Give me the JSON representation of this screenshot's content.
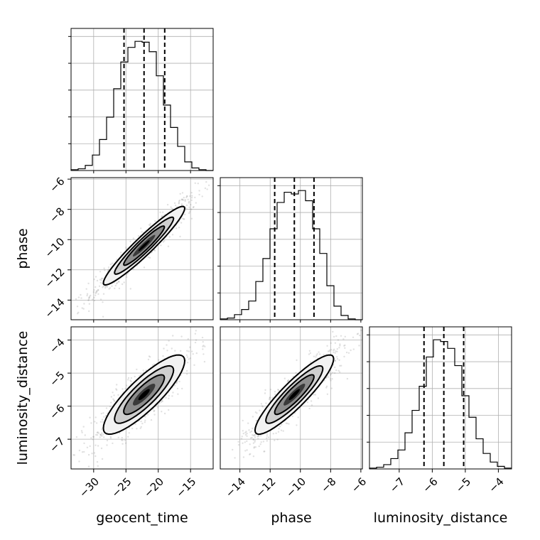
{
  "chart_data": {
    "type": "corner",
    "parameters": [
      "geocent_time",
      "phase",
      "luminosity_distance"
    ],
    "quantiles": {
      "geocent_time": [
        -25.3,
        -22.2,
        -19.0
      ],
      "phase": [
        -11.7,
        -10.4,
        -9.1
      ],
      "luminosity_distance": [
        -6.25,
        -5.65,
        -5.05
      ]
    },
    "ranges": {
      "geocent_time": [
        -33.5,
        -11.5
      ],
      "phase": [
        -15.3,
        -5.9
      ],
      "luminosity_distance": [
        -7.9,
        -3.6
      ]
    },
    "ticks": {
      "geocent_time": [
        -30,
        -25,
        -20,
        -15
      ],
      "phase": [
        -14,
        -12,
        -10,
        -8,
        -6
      ],
      "luminosity_distance": [
        -7,
        -6,
        -5,
        -4
      ]
    },
    "tick_labels": {
      "geocent_time": [
        "−30",
        "−25",
        "−20",
        "−15"
      ],
      "phase": [
        "−14",
        "−12",
        "−10",
        "−8",
        "−6"
      ],
      "luminosity_distance": [
        "−7",
        "−6",
        "−5",
        "−4"
      ]
    },
    "y_tick_labels": {
      "phase": [
        "−6",
        "−8",
        "−10",
        "−12",
        "−14"
      ],
      "luminosity_distance": [
        "−4",
        "−5",
        "−6",
        "−7"
      ]
    },
    "marginals": {
      "geocent_time": {
        "edges": [
          -33.5,
          -32.4,
          -31.3,
          -30.2,
          -29.1,
          -28.0,
          -26.9,
          -25.8,
          -24.7,
          -23.6,
          -22.5,
          -21.4,
          -20.3,
          -19.2,
          -18.1,
          -17.0,
          -15.9,
          -14.8,
          -13.7,
          -12.6,
          -11.5
        ],
        "counts": [
          1,
          2,
          6,
          18,
          36,
          62,
          95,
          126,
          143,
          150,
          149,
          138,
          110,
          76,
          50,
          28,
          10,
          3,
          1,
          0
        ]
      },
      "phase": {
        "edges": [
          -15.3,
          -14.83,
          -14.36,
          -13.89,
          -13.42,
          -12.95,
          -12.48,
          -12.01,
          -11.54,
          -11.07,
          -10.6,
          -10.13,
          -9.66,
          -9.19,
          -8.72,
          -8.25,
          -7.78,
          -7.31,
          -6.84,
          -6.37,
          -5.9
        ],
        "counts": [
          1,
          2,
          6,
          12,
          22,
          45,
          72,
          107,
          138,
          150,
          148,
          152,
          140,
          107,
          78,
          40,
          16,
          5,
          1,
          0
        ]
      },
      "luminosity_distance": {
        "edges": [
          -7.9,
          -7.685,
          -7.47,
          -7.255,
          -7.04,
          -6.825,
          -6.61,
          -6.395,
          -6.18,
          -5.965,
          -5.75,
          -5.535,
          -5.32,
          -5.105,
          -4.89,
          -4.675,
          -4.46,
          -4.245,
          -4.03,
          -3.815,
          -3.6
        ],
        "counts": [
          1,
          2,
          5,
          12,
          22,
          42,
          68,
          96,
          130,
          150,
          148,
          140,
          120,
          85,
          60,
          35,
          18,
          8,
          3,
          1
        ]
      }
    },
    "correlations": {
      "phase_vs_geocent_time": 0.95,
      "luminosity_distance_vs_geocent_time": 0.85,
      "luminosity_distance_vs_phase": 0.9
    },
    "grid": true
  }
}
